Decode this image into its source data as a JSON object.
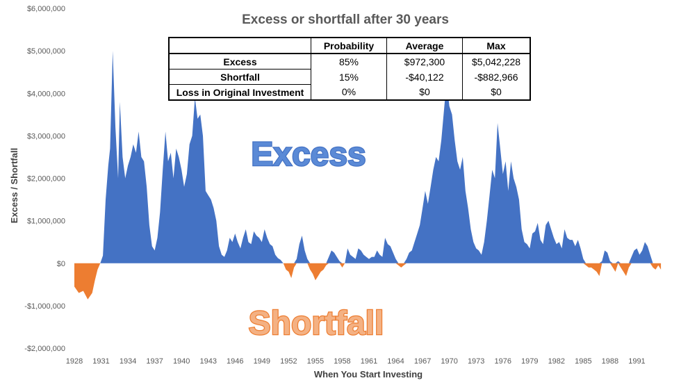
{
  "chart_data": {
    "type": "area",
    "title": "Excess or shortfall after 30 years",
    "xlabel": "When You Start Investing",
    "ylabel": "Excess / Shortfall",
    "ylim": [
      -2000000,
      6000000
    ],
    "xlim": [
      1928,
      1994
    ],
    "y_ticks": [
      {
        "value": 6000000,
        "label": "$6,000,000"
      },
      {
        "value": 5000000,
        "label": "$5,000,000"
      },
      {
        "value": 4000000,
        "label": "$4,000,000"
      },
      {
        "value": 3000000,
        "label": "$3,000,000"
      },
      {
        "value": 2000000,
        "label": "$2,000,000"
      },
      {
        "value": 1000000,
        "label": "$1,000,000"
      },
      {
        "value": 0,
        "label": "$0"
      },
      {
        "value": -1000000,
        "label": "-$1,000,000"
      },
      {
        "value": -2000000,
        "label": "-$2,000,000"
      }
    ],
    "x_ticks": [
      1928,
      1931,
      1934,
      1937,
      1940,
      1943,
      1946,
      1949,
      1952,
      1955,
      1958,
      1961,
      1964,
      1967,
      1970,
      1973,
      1976,
      1979,
      1982,
      1985,
      1988,
      1991
    ],
    "series": [
      {
        "name": "Excess",
        "color": "#4472C4"
      },
      {
        "name": "Shortfall",
        "color": "#ED7D31"
      }
    ],
    "x": [
      1928.0,
      1928.5,
      1929.0,
      1929.5,
      1930.0,
      1930.3,
      1930.6,
      1930.9,
      1931.2,
      1931.5,
      1931.8,
      1932.0,
      1932.3,
      1932.6,
      1932.9,
      1933.1,
      1933.4,
      1933.7,
      1934.0,
      1934.3,
      1934.6,
      1934.9,
      1935.2,
      1935.5,
      1935.8,
      1936.1,
      1936.4,
      1936.7,
      1937.0,
      1937.3,
      1937.6,
      1937.9,
      1938.2,
      1938.5,
      1938.8,
      1939.1,
      1939.4,
      1939.7,
      1940.0,
      1940.3,
      1940.6,
      1940.9,
      1941.2,
      1941.5,
      1941.8,
      1942.1,
      1942.4,
      1942.7,
      1943.0,
      1943.3,
      1943.6,
      1943.9,
      1944.2,
      1944.5,
      1944.8,
      1945.1,
      1945.4,
      1945.7,
      1946.0,
      1946.3,
      1946.6,
      1946.9,
      1947.2,
      1947.5,
      1947.8,
      1948.1,
      1948.4,
      1948.7,
      1949.0,
      1949.3,
      1949.6,
      1949.9,
      1950.2,
      1950.5,
      1950.8,
      1951.1,
      1951.4,
      1951.7,
      1952.0,
      1952.3,
      1952.6,
      1952.9,
      1953.2,
      1953.5,
      1953.8,
      1954.1,
      1954.4,
      1954.7,
      1955.0,
      1955.3,
      1955.6,
      1955.9,
      1956.2,
      1956.5,
      1956.8,
      1957.1,
      1957.4,
      1957.7,
      1958.0,
      1958.3,
      1958.6,
      1958.9,
      1959.2,
      1959.5,
      1959.8,
      1960.1,
      1960.4,
      1960.7,
      1961.0,
      1961.3,
      1961.6,
      1961.9,
      1962.2,
      1962.5,
      1962.8,
      1963.1,
      1963.4,
      1963.7,
      1964.0,
      1964.3,
      1964.6,
      1964.9,
      1965.2,
      1965.5,
      1965.8,
      1966.1,
      1966.4,
      1966.7,
      1967.0,
      1967.3,
      1967.6,
      1967.9,
      1968.2,
      1968.5,
      1968.8,
      1969.1,
      1969.4,
      1969.7,
      1970.0,
      1970.3,
      1970.6,
      1970.9,
      1971.2,
      1971.5,
      1971.8,
      1972.1,
      1972.4,
      1972.7,
      1973.0,
      1973.3,
      1973.6,
      1973.9,
      1974.2,
      1974.5,
      1974.8,
      1975.1,
      1975.4,
      1975.7,
      1976.0,
      1976.3,
      1976.6,
      1976.9,
      1977.2,
      1977.5,
      1977.8,
      1978.1,
      1978.4,
      1978.7,
      1979.0,
      1979.3,
      1979.6,
      1979.9,
      1980.2,
      1980.5,
      1980.8,
      1981.1,
      1981.4,
      1981.7,
      1982.0,
      1982.3,
      1982.6,
      1982.9,
      1983.2,
      1983.5,
      1983.8,
      1984.1,
      1984.4,
      1984.7,
      1985.0,
      1985.3,
      1985.6,
      1985.9,
      1986.2,
      1986.5,
      1986.8,
      1987.1,
      1987.4,
      1987.7,
      1988.0,
      1988.3,
      1988.6,
      1988.9,
      1989.2,
      1989.5,
      1989.8,
      1990.1,
      1990.4,
      1990.7,
      1991.0,
      1991.3,
      1991.6,
      1991.9,
      1992.2,
      1992.5,
      1992.8,
      1993.1,
      1993.4,
      1993.7
    ],
    "values": [
      -550000,
      -700000,
      -650000,
      -850000,
      -700000,
      -400000,
      -150000,
      0,
      180000,
      1500000,
      2300000,
      2700000,
      5000000,
      3200000,
      2000000,
      3800000,
      2500000,
      2000000,
      2300000,
      2500000,
      2800000,
      2600000,
      3100000,
      2500000,
      2400000,
      1800000,
      900000,
      400000,
      300000,
      600000,
      1200000,
      2200000,
      3100000,
      2400000,
      2600000,
      2000000,
      2700000,
      2500000,
      2200000,
      1800000,
      2100000,
      2800000,
      3000000,
      3900000,
      3400000,
      3500000,
      3000000,
      1700000,
      1600000,
      1500000,
      1300000,
      1000000,
      400000,
      200000,
      150000,
      300000,
      600000,
      500000,
      700000,
      500000,
      350000,
      600000,
      800000,
      500000,
      450000,
      750000,
      650000,
      600000,
      500000,
      800000,
      600000,
      450000,
      400000,
      200000,
      120000,
      80000,
      0,
      -150000,
      -200000,
      -350000,
      -100000,
      100000,
      450000,
      650000,
      300000,
      100000,
      -150000,
      -250000,
      -400000,
      -300000,
      -200000,
      -150000,
      -50000,
      150000,
      300000,
      250000,
      150000,
      50000,
      -100000,
      0,
      350000,
      200000,
      150000,
      100000,
      350000,
      300000,
      200000,
      150000,
      100000,
      150000,
      150000,
      300000,
      200000,
      150000,
      600000,
      450000,
      400000,
      250000,
      100000,
      -50000,
      -100000,
      -50000,
      100000,
      250000,
      300000,
      500000,
      700000,
      900000,
      1300000,
      1700000,
      1400000,
      1800000,
      2200000,
      2500000,
      2400000,
      2900000,
      3600000,
      4300000,
      3700000,
      3500000,
      2900000,
      2400000,
      2200000,
      2500000,
      1700000,
      1300000,
      800000,
      500000,
      350000,
      300000,
      200000,
      500000,
      1000000,
      1600000,
      2200000,
      2000000,
      3300000,
      2700000,
      2100000,
      2400000,
      1700000,
      2400000,
      2000000,
      1800000,
      1500000,
      800000,
      500000,
      450000,
      350000,
      700000,
      750000,
      950000,
      550000,
      450000,
      900000,
      1000000,
      800000,
      600000,
      450000,
      500000,
      350000,
      800000,
      600000,
      550000,
      550000,
      400000,
      550000,
      350000,
      100000,
      -50000,
      -100000,
      -100000,
      -150000,
      -200000,
      -300000,
      50000,
      300000,
      250000,
      50000,
      -100000,
      -200000,
      50000,
      -100000,
      -200000,
      -300000,
      -100000,
      150000,
      300000,
      350000,
      200000,
      300000,
      500000,
      400000,
      200000,
      -100000,
      -150000,
      -50000,
      -150000
    ]
  },
  "table": {
    "headers": [
      "",
      "Probability",
      "Average",
      "Max"
    ],
    "rows": [
      {
        "label": "Excess",
        "probability": "85%",
        "average": "$972,300",
        "max": "$5,042,228"
      },
      {
        "label": "Shortfall",
        "probability": "15%",
        "average": "-$40,122",
        "max": "-$882,966"
      },
      {
        "label": "Loss in Original Investment",
        "probability": "0%",
        "average": "$0",
        "max": "$0"
      }
    ]
  },
  "annotations": {
    "excess_label": "Excess",
    "shortfall_label": "Shortfall"
  },
  "colors": {
    "excess": "#4472C4",
    "shortfall": "#ED7D31",
    "excess_text": "#5B8AD6",
    "shortfall_text": "#F4B183"
  }
}
